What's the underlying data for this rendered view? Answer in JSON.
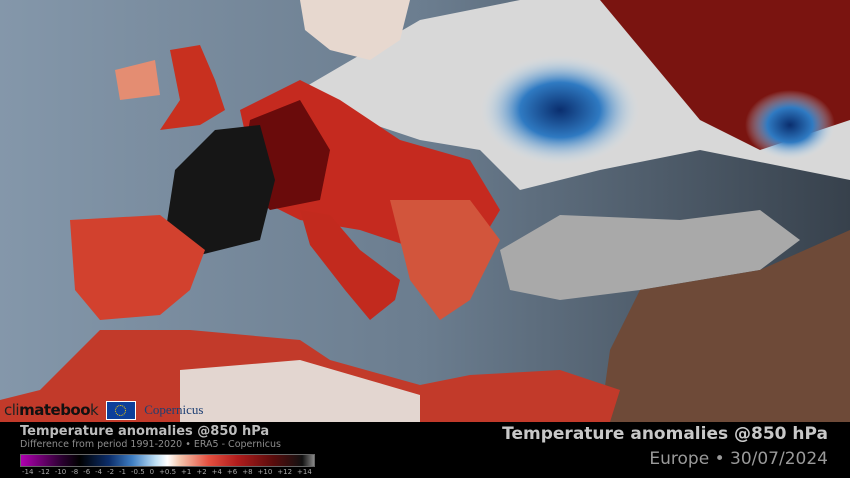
{
  "logos": {
    "climatebook": "climatebook",
    "eu": "EU flag",
    "copernicus": "Copernicus"
  },
  "legend": {
    "title": "Temperature anomalies @850 hPa",
    "subtitle": "Difference from period 1991-2020 • ERA5 - Copernicus",
    "ticks": [
      "-14",
      "-12",
      "-10",
      "-8",
      "-6",
      "-4",
      "-2",
      "-1",
      "-0.5",
      "0",
      "+0.5",
      "+1",
      "+2",
      "+4",
      "+6",
      "+8",
      "+10",
      "+12",
      "+14"
    ],
    "colors": {
      "min": "#b000b0",
      "cold": "#3f7fc4",
      "zero": "#ffffff",
      "warm": "#e55040",
      "max": "#111111"
    }
  },
  "header": {
    "title": "Temperature anomalies @850 hPa",
    "subtitle": "Europe • 30/07/2024"
  }
}
